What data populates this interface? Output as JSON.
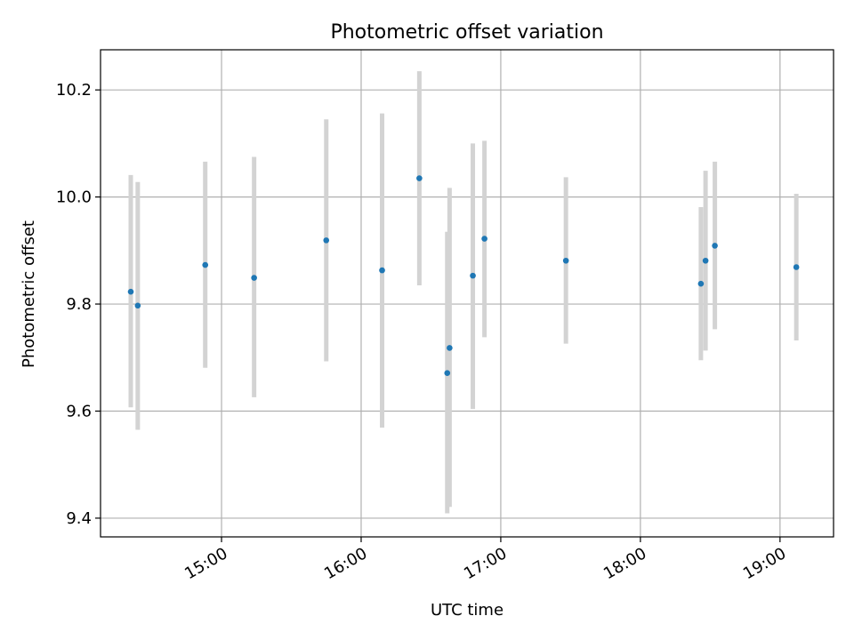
{
  "chart_data": {
    "type": "scatter",
    "title": "Photometric offset variation",
    "xlabel": "UTC time",
    "ylabel": "Photometric offset",
    "grid": true,
    "error_bar_color": "#d3d3d3",
    "marker_color": "#1f77b4",
    "xlim": [
      "14:08",
      "19:23"
    ],
    "ylim": [
      9.365,
      10.275
    ],
    "x_ticks": [
      "15:00",
      "16:00",
      "17:00",
      "18:00",
      "19:00"
    ],
    "y_ticks": [
      9.4,
      9.6,
      9.8,
      10.0,
      10.2
    ],
    "y_tick_labels": [
      "9.4",
      "9.6",
      "9.8",
      "10.0",
      "10.2"
    ],
    "points": [
      {
        "x": "14:21",
        "y": 9.823,
        "lo": 9.607,
        "hi": 10.041
      },
      {
        "x": "14:24",
        "y": 9.797,
        "lo": 9.565,
        "hi": 10.028
      },
      {
        "x": "14:53",
        "y": 9.873,
        "lo": 9.681,
        "hi": 10.066
      },
      {
        "x": "15:14",
        "y": 9.849,
        "lo": 9.626,
        "hi": 10.075
      },
      {
        "x": "15:45",
        "y": 9.919,
        "lo": 9.693,
        "hi": 10.145
      },
      {
        "x": "16:09",
        "y": 9.863,
        "lo": 9.569,
        "hi": 10.156
      },
      {
        "x": "16:25",
        "y": 10.035,
        "lo": 9.835,
        "hi": 10.235
      },
      {
        "x": "16:37",
        "y": 9.671,
        "lo": 9.409,
        "hi": 9.935
      },
      {
        "x": "16:38",
        "y": 9.718,
        "lo": 9.421,
        "hi": 10.017
      },
      {
        "x": "16:48",
        "y": 9.853,
        "lo": 9.604,
        "hi": 10.1
      },
      {
        "x": "16:53",
        "y": 9.922,
        "lo": 9.738,
        "hi": 10.105
      },
      {
        "x": "17:28",
        "y": 9.881,
        "lo": 9.726,
        "hi": 10.037
      },
      {
        "x": "18:26",
        "y": 9.838,
        "lo": 9.695,
        "hi": 9.981
      },
      {
        "x": "18:28",
        "y": 9.881,
        "lo": 9.713,
        "hi": 10.049
      },
      {
        "x": "18:32",
        "y": 9.909,
        "lo": 9.753,
        "hi": 10.066
      },
      {
        "x": "19:07",
        "y": 9.869,
        "lo": 9.732,
        "hi": 10.006
      }
    ]
  }
}
